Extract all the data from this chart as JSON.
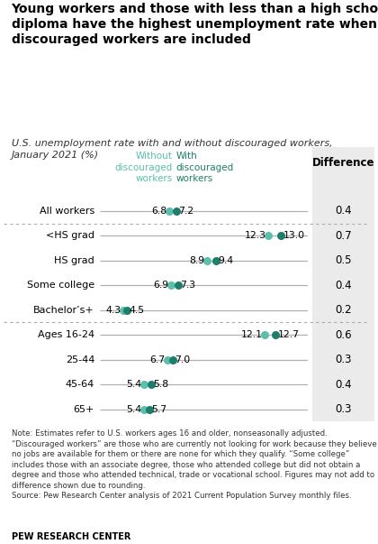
{
  "title_line1": "Young workers and those with less than a high school",
  "title_line2": "diploma have the highest unemployment rate when",
  "title_line3": "discouraged workers are included",
  "subtitle": "U.S. unemployment rate with and without discouraged workers,\nJanuary 2021 (%)",
  "categories": [
    "All workers",
    "<HS grad",
    "HS grad",
    "Some college",
    "Bachelor’s+",
    "Ages 16-24",
    "25-44",
    "45-64",
    "65+"
  ],
  "without": [
    6.8,
    12.3,
    8.9,
    6.9,
    4.3,
    12.1,
    6.7,
    5.4,
    5.4
  ],
  "with": [
    7.2,
    13.0,
    9.4,
    7.3,
    4.5,
    12.7,
    7.0,
    5.8,
    5.7
  ],
  "difference": [
    "0.4",
    "0.7",
    "0.5",
    "0.4",
    "0.2",
    "0.6",
    "0.3",
    "0.4",
    "0.3"
  ],
  "color_without": "#5abfab",
  "color_with": "#1e7d6b",
  "line_color": "#b0b0b0",
  "bg_color": "#ffffff",
  "diff_bg": "#ebebeb",
  "legend_without": "Without\ndiscouraged\nworkers",
  "legend_with": "With\ndiscouraged\nworkers",
  "diff_label": "Difference",
  "note_text": "Note: Estimates refer to U.S. workers ages 16 and older, nonseasonally adjusted.\n“Discouraged workers” are those who are currently not looking for work because they believe\nno jobs are available for them or there are none for which they qualify. “Some college”\nincludes those with an associate degree, those who attended college but did not obtain a\ndegree and those who attended technical, trade or vocational school. Figures may not add to\ndifference shown due to rounding.\nSource: Pew Research Center analysis of 2021 Current Population Survey monthly files.",
  "source_label": "PEW RESEARCH CENTER",
  "x_min": 3.0,
  "x_max": 14.5,
  "dot_size": 6.5,
  "separator_after": [
    0,
    4
  ]
}
